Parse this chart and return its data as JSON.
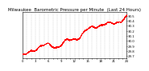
{
  "title": "Milwaukee  Barometric Pressure per Minute  (Last 24 Hours)",
  "dot_color": "#ff0000",
  "bg_color": "#ffffff",
  "plot_bg_color": "#ffffff",
  "grid_color": "#aaaaaa",
  "ylim": [
    29.65,
    30.58
  ],
  "yticks": [
    29.7,
    29.8,
    29.9,
    30.0,
    30.1,
    30.2,
    30.3,
    30.4,
    30.5
  ],
  "num_points": 1440,
  "title_fontsize": 4.0,
  "tick_fontsize": 2.8,
  "dot_size": 0.4,
  "xlim": [
    0,
    24
  ],
  "xtick_step": 3
}
